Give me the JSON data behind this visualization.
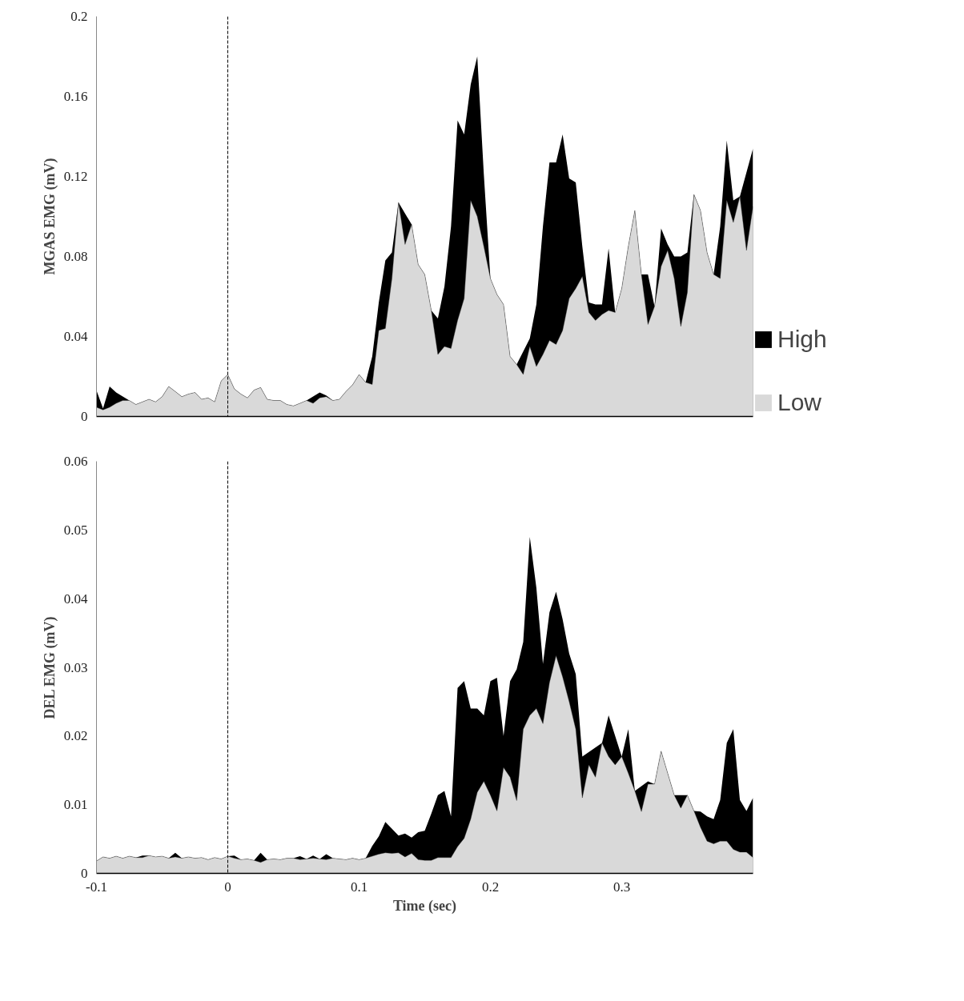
{
  "chart_data": [
    {
      "type": "area",
      "ylabel": "MGAS EMG (mV)",
      "xlim": [
        -0.1,
        0.4
      ],
      "ylim": [
        0,
        0.2
      ],
      "xticks": [
        -0.1,
        0,
        0.1,
        0.2,
        0.3
      ],
      "yticks": [
        0,
        0.04,
        0.08,
        0.12,
        0.16,
        0.2
      ],
      "tick_labels": "y",
      "legend": "right",
      "ref_lines": [
        {
          "axis": "x",
          "value": 0,
          "line_style": "dashed",
          "color": "#000000"
        }
      ],
      "x": [
        -0.1,
        -0.095,
        -0.09,
        -0.085,
        -0.08,
        -0.075,
        -0.07,
        -0.065,
        -0.06,
        -0.055,
        -0.05,
        -0.045,
        -0.04,
        -0.035,
        -0.03,
        -0.025,
        -0.02,
        -0.015,
        -0.01,
        -0.005,
        0,
        0.005,
        0.01,
        0.015,
        0.02,
        0.025,
        0.03,
        0.035,
        0.04,
        0.045,
        0.05,
        0.055,
        0.06,
        0.065,
        0.07,
        0.075,
        0.08,
        0.085,
        0.09,
        0.095,
        0.1,
        0.105,
        0.11,
        0.115,
        0.12,
        0.125,
        0.13,
        0.135,
        0.14,
        0.145,
        0.15,
        0.155,
        0.16,
        0.165,
        0.17,
        0.175,
        0.18,
        0.185,
        0.19,
        0.195,
        0.2,
        0.205,
        0.21,
        0.215,
        0.22,
        0.225,
        0.23,
        0.235,
        0.24,
        0.245,
        0.25,
        0.255,
        0.26,
        0.265,
        0.27,
        0.275,
        0.28,
        0.285,
        0.29,
        0.295,
        0.3,
        0.305,
        0.31,
        0.315,
        0.32,
        0.325,
        0.33,
        0.335,
        0.34,
        0.345,
        0.35,
        0.355,
        0.36,
        0.365,
        0.37,
        0.375,
        0.38,
        0.385,
        0.39,
        0.395,
        0.4
      ],
      "series": [
        {
          "name": "High",
          "color": "#000000",
          "values": [
            0.013,
            0.004,
            0.015,
            0.012,
            0.01,
            0.008,
            0.006,
            0.0073,
            0.0086,
            0.0073,
            0.0099,
            0.015,
            0.0125,
            0.0099,
            0.0112,
            0.012,
            0.0086,
            0.0093,
            0.0073,
            0.0178,
            0.021,
            0.0138,
            0.0112,
            0.0093,
            0.0132,
            0.0145,
            0.0086,
            0.008,
            0.008,
            0.006,
            0.0053,
            0.0066,
            0.008,
            0.01,
            0.012,
            0.0105,
            0.008,
            0.0086,
            0.0125,
            0.0158,
            0.021,
            0.0171,
            0.03,
            0.057,
            0.078,
            0.082,
            0.107,
            null,
            0.096,
            0.076,
            0.071,
            0.053,
            0.049,
            0.065,
            0.095,
            0.148,
            0.141,
            0.166,
            0.18,
            0.121,
            0.069,
            0.061,
            0.056,
            0.03,
            0.026,
            null,
            0.039,
            0.056,
            0.095,
            0.127,
            0.127,
            0.141,
            0.119,
            0.117,
            0.085,
            0.057,
            0.056,
            0.056,
            0.084,
            0.052,
            0.064,
            0.085,
            0.103,
            0.071,
            0.071,
            0.055,
            0.094,
            0.086,
            0.08,
            0.08,
            0.082,
            0.111,
            0.103,
            0.082,
            0.071,
            0.095,
            0.138,
            0.108,
            0.11,
            null,
            0.134
          ]
        },
        {
          "name": "Low",
          "color": "#d9d9d9",
          "values": [
            0.0046,
            0.0033,
            0.0046,
            0.0066,
            0.008,
            0.008,
            0.006,
            0.0073,
            0.0086,
            0.0073,
            0.0099,
            0.015,
            0.0125,
            0.0099,
            0.0112,
            0.012,
            0.0086,
            0.0093,
            0.0073,
            0.0178,
            0.021,
            0.0138,
            0.0112,
            0.0093,
            0.0132,
            0.0145,
            0.0086,
            0.008,
            0.008,
            0.006,
            0.0053,
            0.0066,
            0.008,
            0.0066,
            0.0093,
            0.0099,
            0.008,
            0.0086,
            0.0125,
            0.0158,
            0.021,
            0.0171,
            0.016,
            0.043,
            0.044,
            0.069,
            0.107,
            0.086,
            0.096,
            0.076,
            0.071,
            0.053,
            0.031,
            0.035,
            0.034,
            0.048,
            0.059,
            0.108,
            0.1,
            0.085,
            0.069,
            0.061,
            0.056,
            0.03,
            0.026,
            0.021,
            0.035,
            0.025,
            0.031,
            0.038,
            0.036,
            0.043,
            0.059,
            0.064,
            0.07,
            0.052,
            0.048,
            0.051,
            0.053,
            0.052,
            0.064,
            0.085,
            0.103,
            0.071,
            0.046,
            0.055,
            0.075,
            0.083,
            0.069,
            0.045,
            0.062,
            0.111,
            0.103,
            0.082,
            0.071,
            0.069,
            0.108,
            0.097,
            0.11,
            0.083,
            0.105
          ]
        }
      ]
    },
    {
      "type": "area",
      "xlabel": "Time (sec)",
      "ylabel": "DEL EMG (mV)",
      "xlim": [
        -0.1,
        0.4
      ],
      "ylim": [
        0,
        0.06
      ],
      "xticks": [
        -0.1,
        0,
        0.1,
        0.2,
        0.3
      ],
      "yticks": [
        0,
        0.01,
        0.02,
        0.03,
        0.04,
        0.05,
        0.06
      ],
      "ref_lines": [
        {
          "axis": "x",
          "value": 0,
          "line_style": "dashed",
          "color": "#000000"
        }
      ],
      "x": [
        -0.1,
        -0.095,
        -0.09,
        -0.085,
        -0.08,
        -0.075,
        -0.07,
        -0.065,
        -0.06,
        -0.055,
        -0.05,
        -0.045,
        -0.04,
        -0.035,
        -0.03,
        -0.025,
        -0.02,
        -0.015,
        -0.01,
        -0.005,
        0,
        0.005,
        0.01,
        0.015,
        0.02,
        0.025,
        0.03,
        0.035,
        0.04,
        0.045,
        0.05,
        0.055,
        0.06,
        0.065,
        0.07,
        0.075,
        0.08,
        0.085,
        0.09,
        0.095,
        0.1,
        0.105,
        0.11,
        0.115,
        0.12,
        0.125,
        0.13,
        0.135,
        0.14,
        0.145,
        0.15,
        0.155,
        0.16,
        0.165,
        0.17,
        0.175,
        0.18,
        0.185,
        0.19,
        0.195,
        0.2,
        0.205,
        0.21,
        0.215,
        0.22,
        0.225,
        0.23,
        0.235,
        0.24,
        0.245,
        0.25,
        0.255,
        0.26,
        0.265,
        0.27,
        0.275,
        0.28,
        0.285,
        0.29,
        0.295,
        0.3,
        0.305,
        0.31,
        0.315,
        0.32,
        0.325,
        0.33,
        0.335,
        0.34,
        0.345,
        0.35,
        0.355,
        0.36,
        0.365,
        0.37,
        0.375,
        0.38,
        0.385,
        0.39,
        0.395,
        0.4
      ],
      "series": [
        {
          "color": "#000000",
          "values": [
            0.0018,
            0.0024,
            0.0022,
            0.0025,
            0.0022,
            0.0025,
            0.0023,
            0.0026,
            0.0026,
            0.0024,
            0.0025,
            0.0022,
            0.003,
            0.0022,
            0.0024,
            0.0022,
            0.0023,
            0.002,
            0.0023,
            0.0021,
            0.0025,
            0.0026,
            0.002,
            0.0021,
            0.0019,
            0.003,
            0.002,
            0.0021,
            0.002,
            0.0022,
            0.0022,
            0.0025,
            0.0021,
            0.0026,
            0.0021,
            0.0028,
            0.0022,
            0.0021,
            0.002,
            0.0022,
            0.002,
            0.0022,
            0.004,
            0.0054,
            0.0075,
            0.0065,
            0.0055,
            0.0058,
            0.0052,
            0.006,
            0.0062,
            0.0087,
            0.0114,
            0.012,
            0.0083,
            0.027,
            0.028,
            0.024,
            0.024,
            0.023,
            0.028,
            0.0285,
            0.02,
            0.028,
            0.0297,
            0.0337,
            0.049,
            0.0416,
            0.0305,
            0.038,
            0.041,
            0.037,
            0.032,
            0.029,
            0.017,
            null,
            null,
            0.019,
            0.023,
            null,
            0.017,
            0.021,
            0.012,
            null,
            0.0134,
            0.013,
            0.0178,
            0.0146,
            0.0114,
            null,
            0.0114,
            0.0091,
            0.009,
            0.0083,
            0.0079,
            0.0107,
            0.019,
            0.021,
            0.0107,
            0.0091,
            0.011
          ]
        },
        {
          "color": "#d9d9d9",
          "values": [
            0.0018,
            0.0024,
            0.0022,
            0.0025,
            0.0022,
            0.0025,
            0.0023,
            0.0023,
            0.0026,
            0.0024,
            0.0025,
            0.0022,
            0.0024,
            0.0022,
            0.0024,
            0.0022,
            0.0023,
            0.002,
            0.0023,
            0.0021,
            0.0025,
            0.0022,
            0.002,
            0.0021,
            0.0019,
            0.0016,
            0.002,
            0.0021,
            0.002,
            0.0022,
            0.0022,
            0.002,
            0.0021,
            0.0022,
            0.0021,
            0.002,
            0.0022,
            0.0021,
            0.002,
            0.0022,
            0.002,
            0.0022,
            0.0025,
            0.0028,
            0.003,
            0.0029,
            0.003,
            0.0024,
            0.0029,
            0.002,
            0.0019,
            0.0019,
            0.0023,
            0.0023,
            0.0023,
            0.0039,
            0.0051,
            0.0079,
            0.0118,
            0.0134,
            0.0114,
            0.0091,
            0.0154,
            0.014,
            0.0106,
            0.021,
            0.023,
            0.024,
            0.0218,
            0.0278,
            0.0317,
            0.0286,
            0.025,
            0.021,
            0.011,
            0.0158,
            0.014,
            0.019,
            0.017,
            0.0158,
            0.017,
            0.0146,
            0.012,
            0.009,
            0.013,
            0.013,
            0.0178,
            0.0146,
            0.0114,
            0.0095,
            0.0114,
            0.0091,
            0.0067,
            0.0047,
            0.0043,
            0.0047,
            0.0047,
            0.0035,
            0.0031,
            0.0031,
            0.0023
          ]
        }
      ]
    }
  ]
}
